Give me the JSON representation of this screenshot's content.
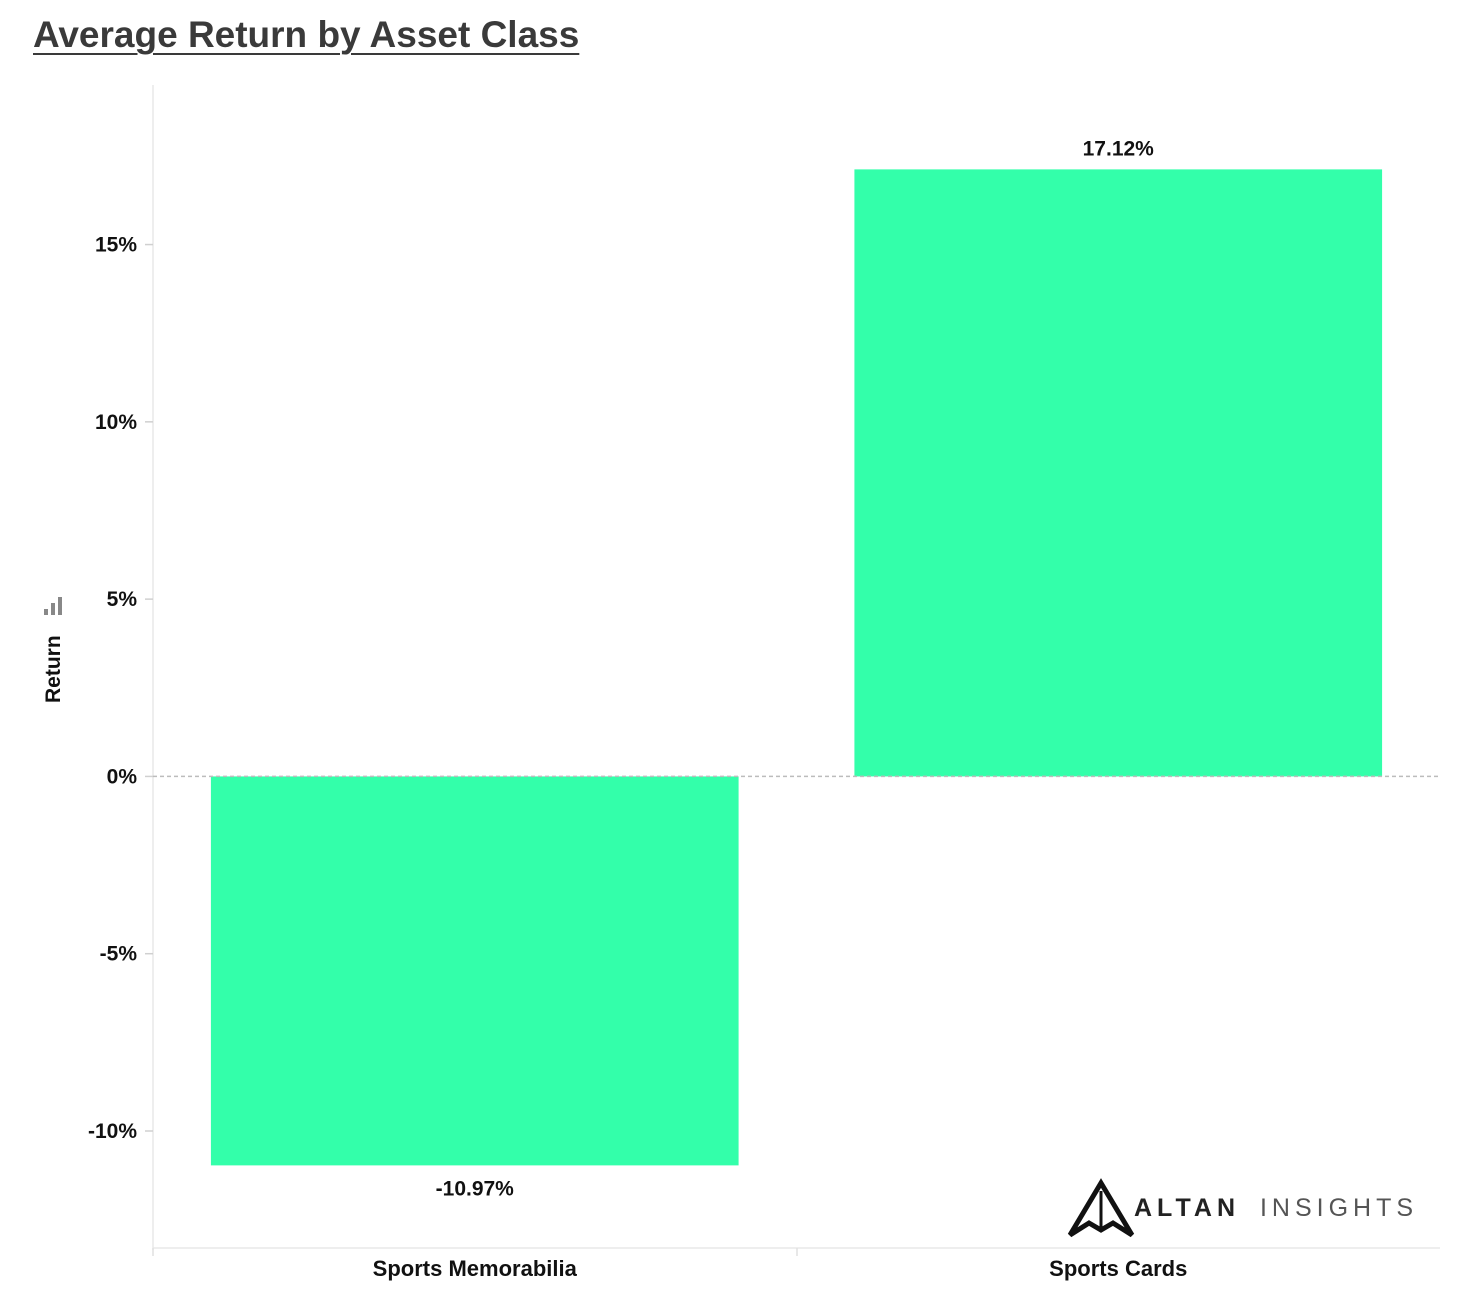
{
  "page": {
    "title": "Average Return by Asset Class"
  },
  "chart_data": {
    "type": "bar",
    "categories": [
      "Sports Memorabilia",
      "Sports Cards"
    ],
    "values": [
      -10.97,
      17.12
    ],
    "data_labels": [
      "-10.97%",
      "17.12%"
    ],
    "title": "Average Return by Asset Class",
    "xlabel": "",
    "ylabel": "Return",
    "ylim": [
      -13.3,
      19.5
    ],
    "yticks": [
      -10,
      -5,
      0,
      5,
      10,
      15
    ],
    "ytick_labels": [
      "-10%",
      "-5%",
      "0%",
      "5%",
      "10%",
      "15%"
    ],
    "bar_color": "#33ffaa",
    "zero_line": true,
    "grid": false
  },
  "logo": {
    "brand": "ALTAN",
    "suffix": "INSIGHTS"
  },
  "icons": {
    "ylabel_icon": "bar-chart-icon",
    "logo_mark": "mountain-logo-icon"
  }
}
